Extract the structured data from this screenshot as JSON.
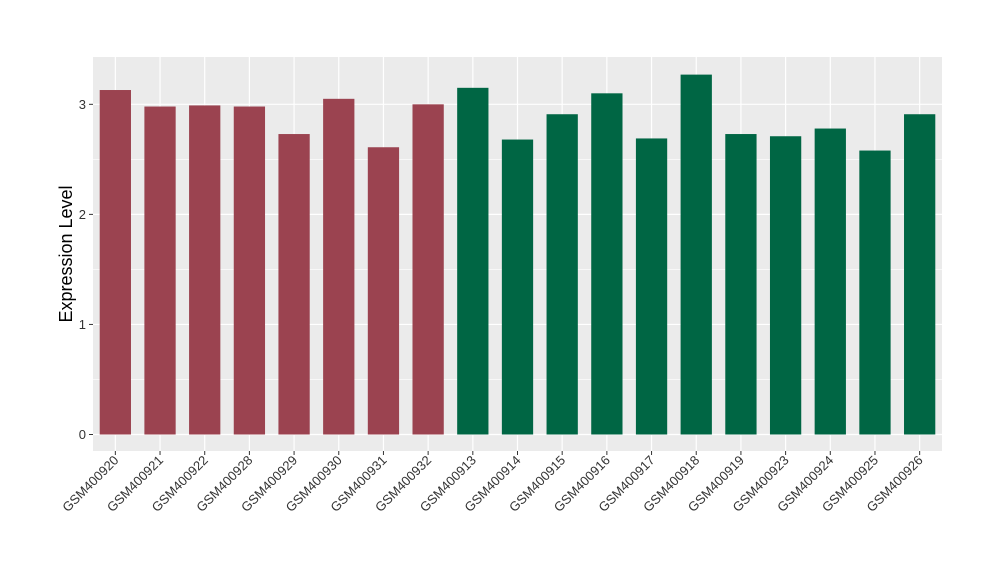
{
  "chart_data": {
    "type": "bar",
    "title": "",
    "xlabel": "",
    "ylabel": "Expression Level",
    "ylim": [
      -0.15,
      3.43
    ],
    "yticks": [
      0,
      1,
      2,
      3
    ],
    "grid": true,
    "legend": "none",
    "categories": [
      "GSM400920",
      "GSM400921",
      "GSM400922",
      "GSM400928",
      "GSM400929",
      "GSM400930",
      "GSM400931",
      "GSM400932",
      "GSM400913",
      "GSM400914",
      "GSM400915",
      "GSM400916",
      "GSM400917",
      "GSM400918",
      "GSM400919",
      "GSM400923",
      "GSM400924",
      "GSM400925",
      "GSM400926"
    ],
    "values": [
      3.13,
      2.98,
      2.99,
      2.98,
      2.73,
      3.05,
      2.61,
      3.0,
      3.15,
      2.68,
      2.91,
      3.1,
      2.69,
      3.27,
      2.73,
      2.71,
      2.78,
      2.58,
      2.91
    ],
    "bar_colors": [
      "#9b4350",
      "#9b4350",
      "#9b4350",
      "#9b4350",
      "#9b4350",
      "#9b4350",
      "#9b4350",
      "#9b4350",
      "#006644",
      "#006644",
      "#006644",
      "#006644",
      "#006644",
      "#006644",
      "#006644",
      "#006644",
      "#006644",
      "#006644",
      "#006644"
    ],
    "colors": {
      "panel": "#ebebeb",
      "grid": "#ffffff",
      "axis_text": "#333333"
    }
  }
}
